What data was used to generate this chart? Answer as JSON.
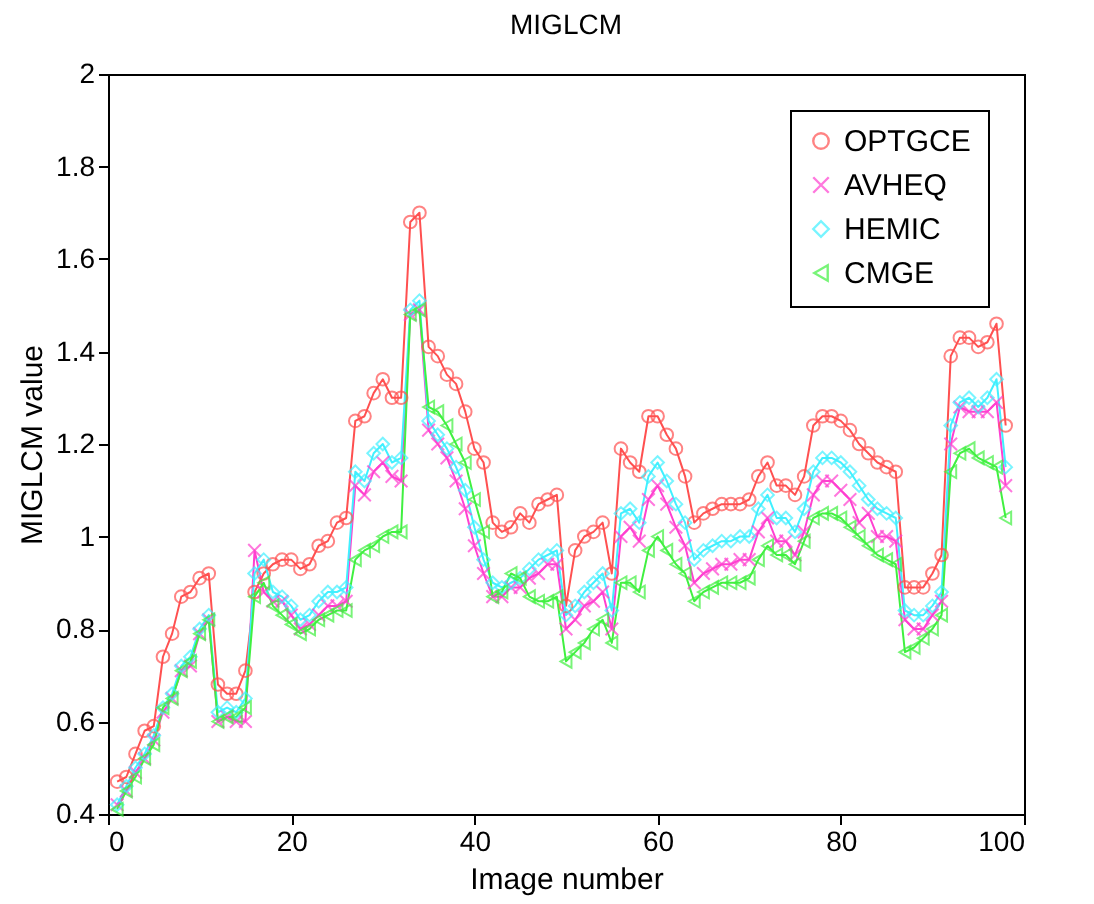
{
  "chart_data": {
    "type": "line",
    "title": "MIGLCM",
    "xlabel": "Image number",
    "ylabel": "MIGLCM value",
    "x": [
      1,
      2,
      3,
      4,
      5,
      6,
      7,
      8,
      9,
      10,
      11,
      12,
      13,
      14,
      15,
      16,
      17,
      18,
      19,
      20,
      21,
      22,
      23,
      24,
      25,
      26,
      27,
      28,
      29,
      30,
      31,
      32,
      33,
      34,
      35,
      36,
      37,
      38,
      39,
      40,
      41,
      42,
      43,
      44,
      45,
      46,
      47,
      48,
      49,
      50,
      51,
      52,
      53,
      54,
      55,
      56,
      57,
      58,
      59,
      60,
      61,
      62,
      63,
      64,
      65,
      66,
      67,
      68,
      69,
      70,
      71,
      72,
      73,
      74,
      75,
      76,
      77,
      78,
      79,
      80,
      81,
      82,
      83,
      84,
      85,
      86,
      87,
      88,
      89,
      90,
      91,
      92,
      93,
      94,
      95,
      96,
      97,
      98
    ],
    "xlim": [
      0,
      100
    ],
    "xticks": [
      0,
      20,
      40,
      60,
      80,
      100
    ],
    "ylim": [
      0.4,
      2
    ],
    "yticks": [
      0.4,
      0.6,
      0.8,
      1,
      1.2,
      1.4,
      1.6,
      1.8,
      2
    ],
    "grid": false,
    "legend": "top right",
    "line_style": "solid",
    "series": [
      {
        "name": "OPTGCE",
        "color": "#ff5050",
        "marker": "circle",
        "values": [
          0.47,
          0.48,
          0.53,
          0.58,
          0.59,
          0.74,
          0.79,
          0.87,
          0.88,
          0.91,
          0.92,
          0.68,
          0.66,
          0.66,
          0.71,
          0.88,
          0.92,
          0.94,
          0.95,
          0.95,
          0.93,
          0.94,
          0.98,
          0.99,
          1.03,
          1.04,
          1.25,
          1.26,
          1.31,
          1.34,
          1.3,
          1.3,
          1.68,
          1.7,
          1.41,
          1.39,
          1.35,
          1.33,
          1.27,
          1.19,
          1.16,
          1.03,
          1.01,
          1.02,
          1.05,
          1.03,
          1.07,
          1.08,
          1.09,
          0.85,
          0.97,
          1.0,
          1.01,
          1.03,
          0.92,
          1.19,
          1.16,
          1.14,
          1.26,
          1.26,
          1.22,
          1.19,
          1.13,
          1.03,
          1.05,
          1.06,
          1.07,
          1.07,
          1.07,
          1.08,
          1.13,
          1.16,
          1.11,
          1.11,
          1.09,
          1.13,
          1.24,
          1.26,
          1.26,
          1.25,
          1.23,
          1.2,
          1.18,
          1.16,
          1.15,
          1.14,
          0.89,
          0.89,
          0.89,
          0.92,
          0.96,
          1.39,
          1.43,
          1.43,
          1.41,
          1.42,
          1.46,
          1.24
        ]
      },
      {
        "name": "AVHEQ",
        "color": "#ff40d0",
        "marker": "cross",
        "values": [
          0.42,
          0.45,
          0.49,
          0.52,
          0.56,
          0.62,
          0.65,
          0.71,
          0.72,
          0.79,
          0.82,
          0.6,
          0.61,
          0.6,
          0.6,
          0.97,
          0.88,
          0.86,
          0.86,
          0.83,
          0.8,
          0.81,
          0.83,
          0.85,
          0.85,
          0.86,
          1.11,
          1.09,
          1.14,
          1.16,
          1.13,
          1.12,
          1.48,
          1.49,
          1.23,
          1.2,
          1.17,
          1.12,
          1.06,
          0.98,
          0.92,
          0.87,
          0.87,
          0.89,
          0.89,
          0.91,
          0.92,
          0.94,
          0.94,
          0.8,
          0.82,
          0.85,
          0.86,
          0.88,
          0.8,
          1.0,
          1.02,
          0.99,
          1.08,
          1.11,
          1.07,
          1.02,
          0.98,
          0.9,
          0.92,
          0.93,
          0.94,
          0.94,
          0.95,
          0.95,
          1.01,
          1.04,
          0.99,
          0.99,
          0.96,
          1.01,
          1.09,
          1.12,
          1.12,
          1.1,
          1.08,
          1.03,
          1.05,
          1.0,
          1.0,
          0.99,
          0.82,
          0.8,
          0.8,
          0.83,
          0.86,
          1.2,
          1.28,
          1.27,
          1.27,
          1.27,
          1.29,
          1.11
        ]
      },
      {
        "name": "HEMIC",
        "color": "#40f0ff",
        "marker": "diamond",
        "values": [
          0.42,
          0.46,
          0.5,
          0.53,
          0.57,
          0.63,
          0.66,
          0.72,
          0.74,
          0.8,
          0.83,
          0.62,
          0.63,
          0.62,
          0.65,
          0.92,
          0.95,
          0.88,
          0.87,
          0.85,
          0.82,
          0.83,
          0.86,
          0.88,
          0.88,
          0.89,
          1.14,
          1.12,
          1.18,
          1.2,
          1.16,
          1.17,
          1.49,
          1.51,
          1.25,
          1.22,
          1.19,
          1.15,
          1.1,
          1.02,
          0.95,
          0.9,
          0.89,
          0.9,
          0.91,
          0.93,
          0.95,
          0.96,
          0.97,
          0.83,
          0.85,
          0.88,
          0.9,
          0.92,
          0.84,
          1.05,
          1.06,
          1.03,
          1.13,
          1.16,
          1.12,
          1.07,
          1.03,
          0.95,
          0.97,
          0.98,
          0.99,
          0.99,
          1.0,
          1.0,
          1.06,
          1.09,
          1.04,
          1.04,
          1.01,
          1.06,
          1.14,
          1.17,
          1.17,
          1.16,
          1.14,
          1.11,
          1.08,
          1.06,
          1.05,
          1.04,
          0.84,
          0.83,
          0.83,
          0.85,
          0.88,
          1.24,
          1.29,
          1.3,
          1.28,
          1.3,
          1.34,
          1.15
        ]
      },
      {
        "name": "CMGE",
        "color": "#40f040",
        "marker": "triangle",
        "values": [
          0.41,
          0.45,
          0.48,
          0.52,
          0.55,
          0.63,
          0.65,
          0.71,
          0.73,
          0.79,
          0.82,
          0.6,
          0.61,
          0.61,
          0.63,
          0.87,
          0.9,
          0.85,
          0.83,
          0.81,
          0.79,
          0.8,
          0.82,
          0.83,
          0.84,
          0.84,
          0.95,
          0.97,
          0.98,
          1.0,
          1.01,
          1.01,
          1.48,
          1.49,
          1.28,
          1.27,
          1.24,
          1.2,
          1.16,
          1.08,
          1.01,
          0.87,
          0.88,
          0.92,
          0.91,
          0.87,
          0.86,
          0.86,
          0.87,
          0.73,
          0.75,
          0.77,
          0.8,
          0.82,
          0.77,
          0.9,
          0.9,
          0.88,
          0.97,
          1.0,
          0.97,
          0.94,
          0.92,
          0.86,
          0.88,
          0.89,
          0.9,
          0.9,
          0.9,
          0.91,
          0.95,
          0.98,
          0.96,
          0.96,
          0.94,
          0.99,
          1.04,
          1.05,
          1.05,
          1.04,
          1.02,
          1.0,
          0.98,
          0.96,
          0.95,
          0.94,
          0.75,
          0.76,
          0.78,
          0.8,
          0.83,
          1.14,
          1.18,
          1.19,
          1.17,
          1.16,
          1.15,
          1.04
        ]
      }
    ]
  }
}
